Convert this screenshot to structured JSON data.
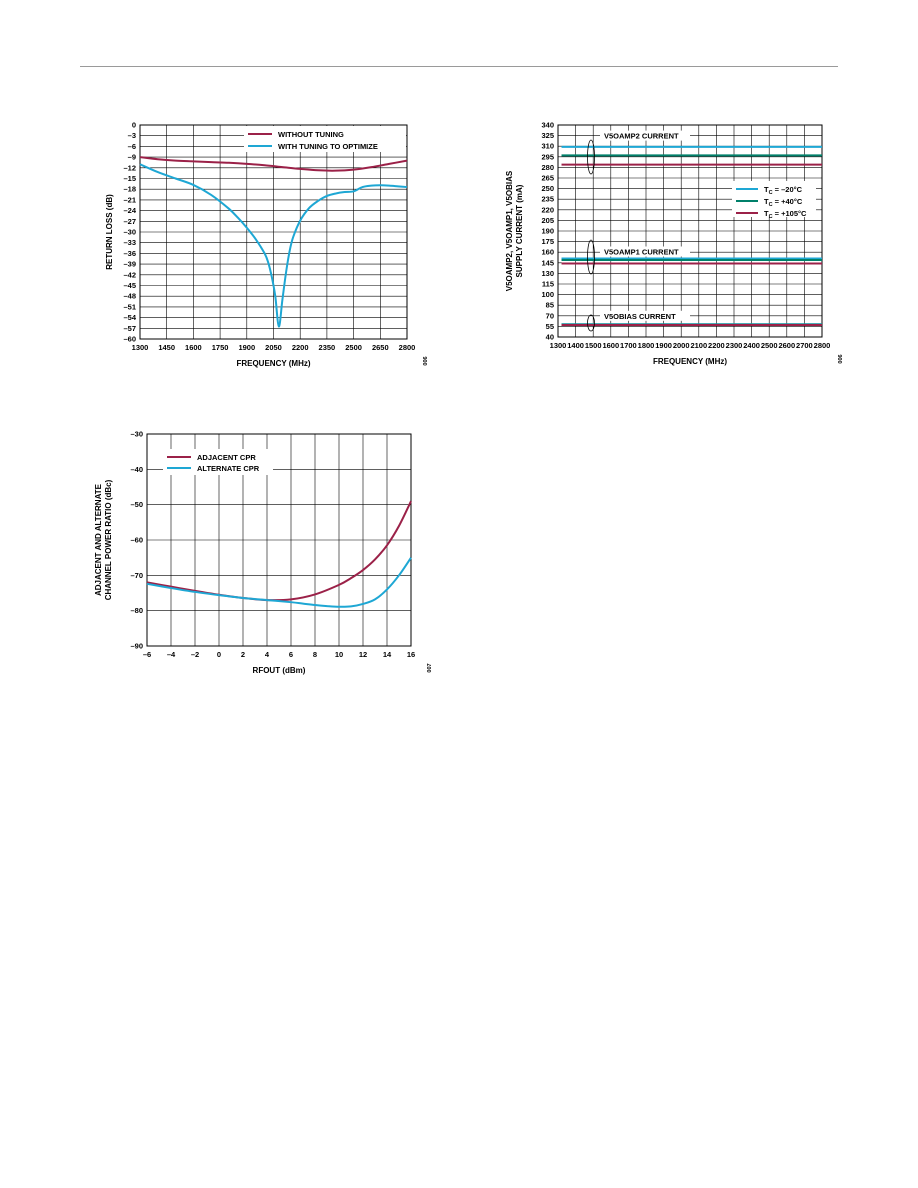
{
  "page": {
    "header_rule": true
  },
  "colors": {
    "maroon": "#9b2148",
    "blue": "#1ea7d4",
    "teal": "#00806a",
    "grid": "#000000"
  },
  "chart_data": [
    {
      "id": "return-loss",
      "type": "line",
      "xlabel": "FREQUENCY (MHz)",
      "ylabel": "RETURN LOSS (dB)",
      "figure_number": "006",
      "xlim": [
        1300,
        2800
      ],
      "ylim": [
        -60,
        0
      ],
      "xticks": [
        1300,
        1450,
        1600,
        1750,
        1900,
        2050,
        2200,
        2350,
        2500,
        2650,
        2800
      ],
      "yticks": [
        0,
        -3,
        -6,
        -9,
        -12,
        -15,
        -18,
        -21,
        -24,
        -27,
        -30,
        -33,
        -36,
        -39,
        -42,
        -45,
        -48,
        -51,
        -54,
        -57,
        -60
      ],
      "ytick_labels": [
        "0",
        "–3",
        "–6",
        "–9",
        "–12",
        "–15",
        "–18",
        "–21",
        "–24",
        "–27",
        "–30",
        "–33",
        "–36",
        "–39",
        "–42",
        "–45",
        "–48",
        "–51",
        "–54",
        "–57",
        "–60"
      ],
      "legend": "top-right",
      "series": [
        {
          "name": "WITHOUT TUNING",
          "color": "#9b2148",
          "x": [
            1300,
            1400,
            1500,
            1600,
            1700,
            1800,
            1900,
            2000,
            2100,
            2200,
            2300,
            2400,
            2500,
            2600,
            2700,
            2800
          ],
          "y": [
            -9,
            -9.6,
            -10,
            -10.2,
            -10.4,
            -10.6,
            -10.9,
            -11.3,
            -11.8,
            -12.3,
            -12.7,
            -12.8,
            -12.5,
            -11.8,
            -10.9,
            -10
          ]
        },
        {
          "name": "WITH TUNING TO OPTIMIZE",
          "color": "#1ea7d4",
          "x": [
            1300,
            1400,
            1500,
            1600,
            1700,
            1800,
            1850,
            1900,
            1950,
            2000,
            2020,
            2040,
            2060,
            2080,
            2100,
            2120,
            2140,
            2160,
            2200,
            2250,
            2300,
            2350,
            2400,
            2450,
            2500,
            2550,
            2600,
            2650,
            2700,
            2750,
            2800
          ],
          "y": [
            -11,
            -13.2,
            -15,
            -16.8,
            -19.6,
            -23.5,
            -26,
            -28.8,
            -32,
            -36,
            -38.5,
            -42.5,
            -48,
            -56.5,
            -49,
            -41.5,
            -35.5,
            -31.5,
            -26.8,
            -23.3,
            -21.3,
            -19.9,
            -19.2,
            -18.8,
            -18.6,
            -17.4,
            -17,
            -16.9,
            -17,
            -17.2,
            -17.4
          ]
        }
      ]
    },
    {
      "id": "supply-current",
      "type": "line",
      "xlabel": "FREQUENCY (MHz)",
      "ylabel_lines": [
        "V5OAMP2, V5OAMP1, V5OBIAS",
        "SUPPLY CURRENT (mA)"
      ],
      "figure_number": "006",
      "xlim": [
        1300,
        2800
      ],
      "ylim": [
        40,
        340
      ],
      "xticks": [
        1300,
        1400,
        1500,
        1600,
        1700,
        1800,
        1900,
        2000,
        2100,
        2200,
        2300,
        2400,
        2500,
        2600,
        2700,
        2800
      ],
      "xtick_labels": [
        "1300",
        "1400",
        "1500",
        "1600",
        "1700",
        "1800",
        "1900",
        "2000",
        "2100",
        "2200",
        "2300",
        "2400",
        "2500",
        "2600",
        "2700",
        "2800"
      ],
      "yticks": [
        340,
        325,
        310,
        295,
        280,
        265,
        250,
        235,
        220,
        205,
        190,
        175,
        160,
        145,
        130,
        115,
        100,
        85,
        70,
        55,
        40
      ],
      "ytick_labels": [
        "340",
        "325",
        "310",
        "295",
        "280",
        "265",
        "250",
        "235",
        "220",
        "205",
        "190",
        "175",
        "160",
        "145",
        "130",
        "115",
        "100",
        "85",
        "70",
        "55",
        "40"
      ],
      "legend": "right",
      "legend_items": [
        {
          "prefix": "T",
          "sub": "C",
          "suffix": " = –20°C",
          "color": "#1ea7d4"
        },
        {
          "prefix": "T",
          "sub": "C",
          "suffix": " = +40°C",
          "color": "#00806a"
        },
        {
          "prefix": "T",
          "sub": "C",
          "suffix": " = +105°C",
          "color": "#9b2148"
        }
      ],
      "annotations": [
        "V5OAMP2 CURRENT",
        "V5OAMP1 CURRENT",
        "V5OBIAS CURRENT"
      ],
      "series": [
        {
          "group": "V5OAMP2 CURRENT",
          "temp": "–20°C",
          "color": "#1ea7d4",
          "x": [
            1320,
            2800
          ],
          "y": [
            309,
            309
          ]
        },
        {
          "group": "V5OAMP2 CURRENT",
          "temp": "+40°C",
          "color": "#00806a",
          "x": [
            1320,
            2800
          ],
          "y": [
            297,
            297
          ]
        },
        {
          "group": "V5OAMP2 CURRENT",
          "temp": "+105°C",
          "color": "#9b2148",
          "x": [
            1320,
            2800
          ],
          "y": [
            284,
            284
          ]
        },
        {
          "group": "V5OAMP1 CURRENT",
          "temp": "–20°C",
          "color": "#1ea7d4",
          "x": [
            1320,
            2800
          ],
          "y": [
            151,
            151
          ]
        },
        {
          "group": "V5OAMP1 CURRENT",
          "temp": "+40°C",
          "color": "#00806a",
          "x": [
            1320,
            2800
          ],
          "y": [
            149,
            149
          ]
        },
        {
          "group": "V5OAMP1 CURRENT",
          "temp": "+105°C",
          "color": "#9b2148",
          "x": [
            1320,
            2800
          ],
          "y": [
            144,
            144
          ]
        },
        {
          "group": "V5OBIAS CURRENT",
          "temp": "–20°C",
          "color": "#1ea7d4",
          "x": [
            1320,
            2800
          ],
          "y": [
            58,
            58
          ]
        },
        {
          "group": "V5OBIAS CURRENT",
          "temp": "+40°C",
          "color": "#00806a",
          "x": [
            1320,
            2800
          ],
          "y": [
            57.5,
            57.5
          ]
        },
        {
          "group": "V5OBIAS CURRENT",
          "temp": "+105°C",
          "color": "#9b2148",
          "x": [
            1320,
            2800
          ],
          "y": [
            57,
            57
          ]
        }
      ]
    },
    {
      "id": "cpr",
      "type": "line",
      "xlabel": "RFOUT (dBm)",
      "ylabel_lines": [
        "ADJACENT AND ALTERNATE",
        "CHANNEL POWER RATIO (dBc)"
      ],
      "figure_number": "007",
      "xlim": [
        -6,
        16
      ],
      "ylim": [
        -90,
        -30
      ],
      "xticks": [
        -6,
        -4,
        -2,
        0,
        2,
        4,
        6,
        8,
        10,
        12,
        14,
        16
      ],
      "xtick_labels": [
        "–6",
        "–4",
        "–2",
        "0",
        "2",
        "4",
        "6",
        "8",
        "10",
        "12",
        "14",
        "16"
      ],
      "yticks": [
        -30,
        -40,
        -50,
        -60,
        -70,
        -80,
        -90
      ],
      "ytick_labels": [
        "–30",
        "–40",
        "–50",
        "–60",
        "–70",
        "–80",
        "–90"
      ],
      "legend": "top-left",
      "series": [
        {
          "name": "ADJACENT CPR",
          "color": "#9b2148",
          "x": [
            -6,
            -4,
            -2,
            0,
            2,
            4,
            6,
            8,
            10,
            11,
            12,
            13,
            14,
            15,
            16
          ],
          "y": [
            -72,
            -73.2,
            -74.4,
            -75.5,
            -76.4,
            -77,
            -76.8,
            -75.4,
            -72.7,
            -70.8,
            -68.5,
            -65.5,
            -61.5,
            -56,
            -49
          ]
        },
        {
          "name": "ALTERNATE CPR",
          "color": "#1ea7d4",
          "x": [
            -6,
            -4,
            -2,
            0,
            2,
            4,
            6,
            7,
            8,
            9,
            10,
            11,
            12,
            13,
            14,
            15,
            16
          ],
          "y": [
            -72.4,
            -73.6,
            -74.7,
            -75.6,
            -76.4,
            -77,
            -77.6,
            -78,
            -78.4,
            -78.7,
            -78.9,
            -78.8,
            -78.1,
            -76.8,
            -74,
            -70,
            -65
          ]
        }
      ]
    }
  ]
}
